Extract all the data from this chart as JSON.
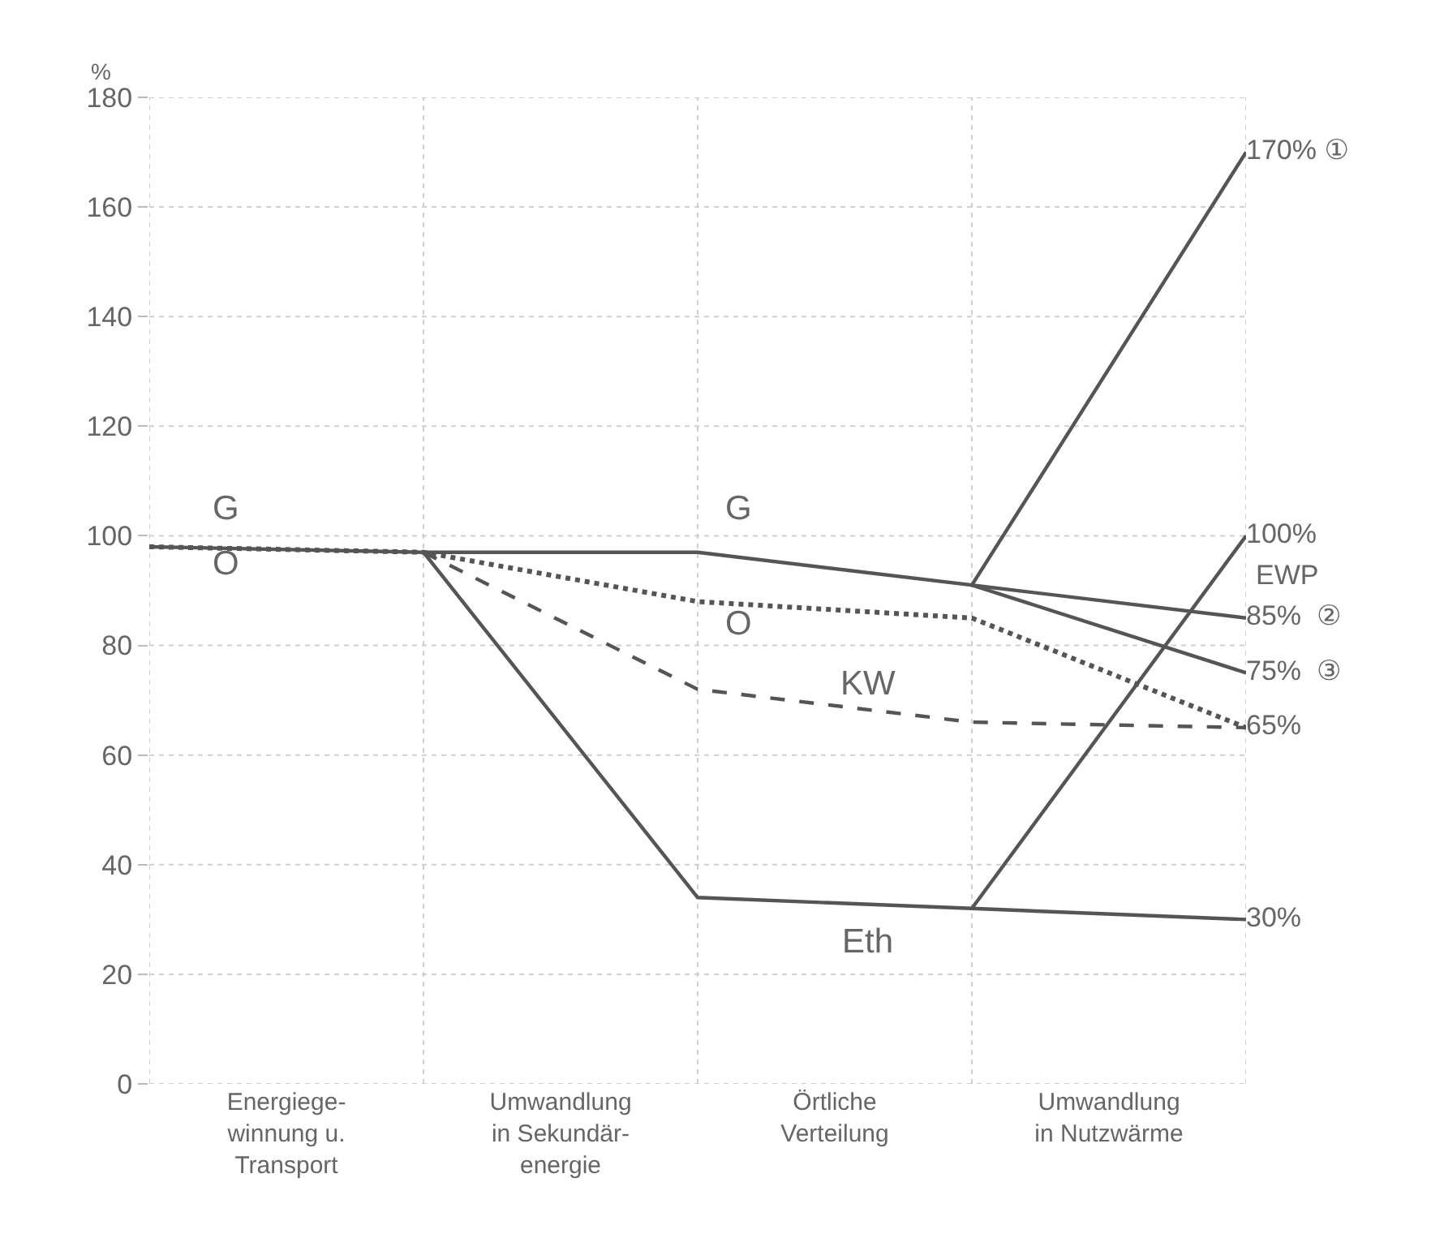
{
  "chart_data": {
    "type": "line",
    "ylabel": "%",
    "ylim": [
      0,
      180
    ],
    "yticks": [
      0,
      20,
      40,
      60,
      80,
      100,
      120,
      140,
      160,
      180
    ],
    "categories": [
      null,
      "Energiege-\nwinnung u.\nTransport",
      null,
      "Umwandlung\nin Sekundär-\nenergie",
      null,
      "Örtliche\nVerteilung",
      null,
      "Umwandlung\nin Nutzwärme",
      null
    ],
    "grid": true,
    "legend": false,
    "marker": "none",
    "series": [
      {
        "name": "O",
        "color": "#555555",
        "line_style": "dotted",
        "values": [
          98,
          null,
          97,
          null,
          88,
          null,
          85,
          null,
          65
        ],
        "value_labels": [
          null,
          null,
          null,
          null,
          null,
          null,
          null,
          null,
          null
        ]
      },
      {
        "name": "KW",
        "color": "#555555",
        "line_style": "dashed",
        "values": [
          null,
          null,
          97,
          null,
          72,
          null,
          66,
          null,
          65
        ],
        "value_labels": [
          null,
          null,
          null,
          null,
          null,
          null,
          null,
          null,
          "65%"
        ]
      },
      {
        "name": "Eth",
        "color": "#555555",
        "line_style": "solid",
        "values": [
          null,
          null,
          97,
          null,
          34,
          null,
          32,
          null,
          30
        ],
        "value_labels": [
          null,
          null,
          null,
          null,
          null,
          null,
          null,
          null,
          "30%"
        ]
      },
      {
        "name": "EWP",
        "color": "#555555",
        "line_style": "solid",
        "values": [
          null,
          null,
          null,
          null,
          null,
          null,
          32,
          null,
          100
        ],
        "value_labels": [
          null,
          null,
          null,
          null,
          null,
          null,
          null,
          null,
          "100%"
        ]
      },
      {
        "color": "#555555",
        "line_style": "solid",
        "values": [
          null,
          null,
          null,
          null,
          null,
          null,
          91,
          null,
          85
        ],
        "value_labels": [
          null,
          null,
          null,
          null,
          null,
          null,
          null,
          null,
          "85%  ②"
        ]
      },
      {
        "color": "#555555",
        "line_style": "solid",
        "values": [
          null,
          null,
          null,
          null,
          null,
          null,
          91,
          null,
          75
        ],
        "value_labels": [
          null,
          null,
          null,
          null,
          null,
          null,
          null,
          null,
          "75%  ③"
        ]
      },
      {
        "name": "G",
        "color": "#555555",
        "line_style": "solid",
        "values": [
          98,
          null,
          97,
          null,
          97,
          null,
          91,
          null,
          170
        ],
        "value_labels": [
          null,
          null,
          null,
          null,
          null,
          null,
          null,
          null,
          "170% ①"
        ]
      }
    ]
  }
}
